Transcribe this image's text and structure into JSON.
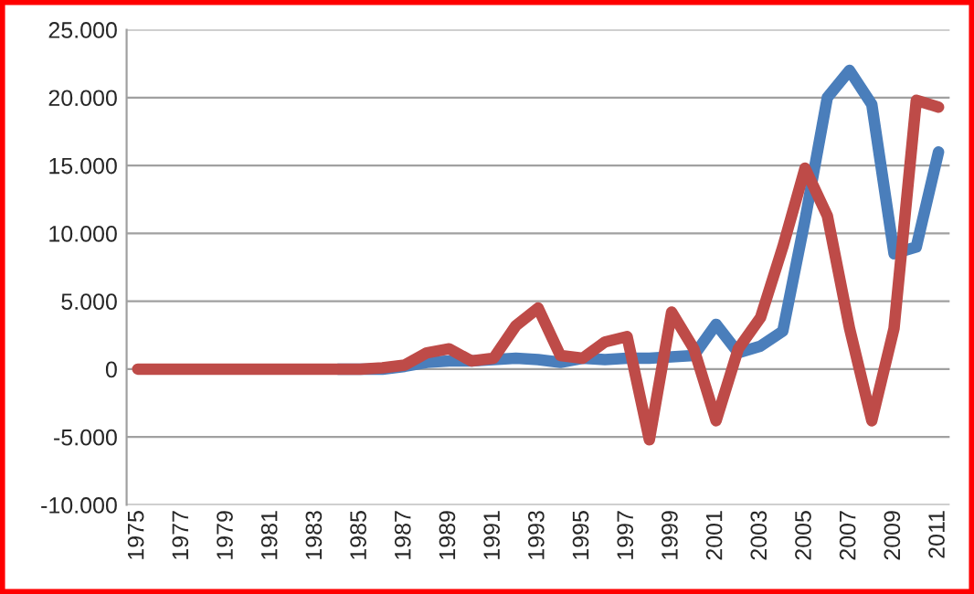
{
  "chart_data": {
    "type": "line",
    "categories": [
      "1975",
      null,
      "1977",
      null,
      "1979",
      null,
      "1981",
      null,
      "1983",
      null,
      "1985",
      null,
      "1987",
      null,
      "1989",
      null,
      "1991",
      null,
      "1993",
      null,
      "1995",
      null,
      "1997",
      null,
      "1999",
      null,
      "2001",
      null,
      "2003",
      null,
      "2005",
      null,
      "2007",
      null,
      "2009",
      null,
      "2011"
    ],
    "series": [
      {
        "color": "#4a7ebb",
        "values": [
          null,
          null,
          null,
          null,
          null,
          null,
          null,
          null,
          null,
          0,
          0,
          0,
          200,
          500,
          600,
          600,
          700,
          800,
          700,
          500,
          800,
          700,
          800,
          800,
          900,
          1000,
          3300,
          1200,
          1700,
          2800,
          11000,
          20000,
          22000,
          19500,
          8500,
          9000,
          16000
        ]
      },
      {
        "color": "#be4b48",
        "values": [
          0,
          0,
          0,
          0,
          0,
          0,
          0,
          0,
          0,
          0,
          0,
          100,
          300,
          1200,
          1500,
          600,
          800,
          3200,
          4500,
          1000,
          800,
          2000,
          2400,
          -5200,
          4200,
          1500,
          -3800,
          1500,
          3800,
          9000,
          14800,
          11300,
          3000,
          -3800,
          3000,
          19800,
          19300
        ]
      }
    ],
    "ylim": [
      -10000,
      25000
    ],
    "yticks": [
      {
        "value": -10000,
        "label": "-10.000"
      },
      {
        "value": -5000,
        "label": "-5.000"
      },
      {
        "value": 0,
        "label": "0"
      },
      {
        "value": 5000,
        "label": "5.000"
      },
      {
        "value": 10000,
        "label": "10.000"
      },
      {
        "value": 15000,
        "label": "15.000"
      },
      {
        "value": 20000,
        "label": "20.000"
      },
      {
        "value": 25000,
        "label": "25.000"
      }
    ],
    "grid": "y",
    "legend": false
  }
}
